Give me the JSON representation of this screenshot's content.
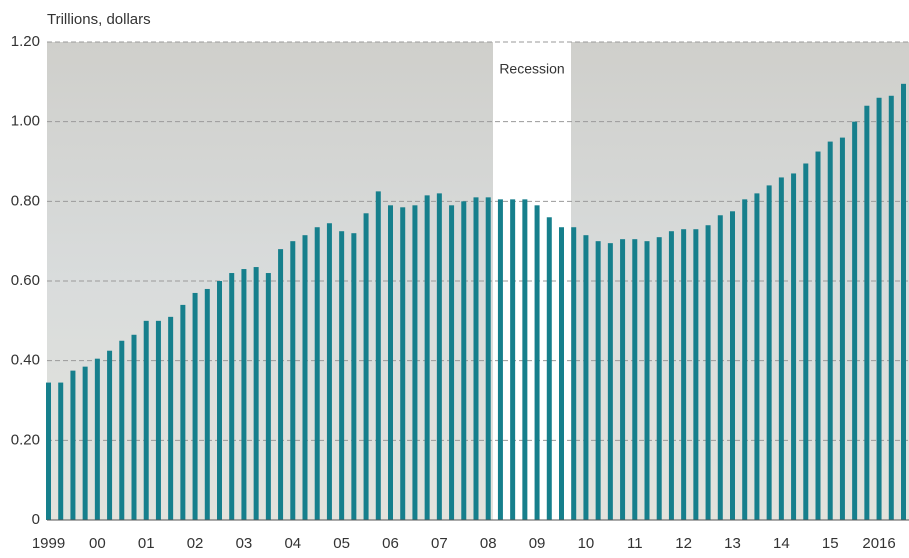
{
  "chart_data": {
    "type": "bar",
    "y_label": "Trillions, dollars",
    "annotation": "Recession",
    "color": "#167f8c",
    "grid": true,
    "ylim": [
      0,
      1.2
    ],
    "yticks": [
      0,
      {
        "value": 0.2,
        "label": "0.20"
      },
      {
        "value": 0.4,
        "label": "0.40"
      },
      {
        "value": 0.6,
        "label": "0.60"
      },
      {
        "value": 0.8,
        "label": "0.80"
      },
      {
        "value": 1.0,
        "label": "1.00"
      },
      {
        "value": 1.2,
        "label": "1.20"
      }
    ],
    "categories": [
      "1999",
      null,
      null,
      null,
      "00",
      null,
      null,
      null,
      "01",
      null,
      null,
      null,
      "02",
      null,
      null,
      null,
      "03",
      null,
      null,
      null,
      "04",
      null,
      null,
      null,
      "05",
      null,
      null,
      null,
      "06",
      null,
      null,
      null,
      "07",
      null,
      null,
      null,
      "08",
      null,
      null,
      null,
      "09",
      null,
      null,
      null,
      "10",
      null,
      null,
      null,
      "11",
      null,
      null,
      null,
      "12",
      null,
      null,
      null,
      "13",
      null,
      null,
      null,
      "14",
      null,
      null,
      null,
      "15",
      null,
      null,
      null,
      "2016",
      null,
      null
    ],
    "values": [
      0.345,
      0.345,
      0.375,
      0.385,
      0.405,
      0.425,
      0.45,
      0.465,
      0.5,
      0.5,
      0.51,
      0.54,
      0.57,
      0.58,
      0.6,
      0.62,
      0.63,
      0.635,
      0.62,
      0.68,
      0.7,
      0.715,
      0.735,
      0.745,
      0.725,
      0.72,
      0.77,
      0.825,
      0.79,
      0.785,
      0.79,
      0.815,
      0.82,
      0.79,
      0.8,
      0.81,
      0.81,
      0.805,
      0.805,
      0.805,
      0.79,
      0.76,
      0.735,
      0.735,
      0.715,
      0.7,
      0.695,
      0.705,
      0.705,
      0.7,
      0.71,
      0.725,
      0.73,
      0.73,
      0.74,
      0.765,
      0.775,
      0.805,
      0.82,
      0.84,
      0.86,
      0.87,
      0.895,
      0.925,
      0.95,
      0.96,
      1.0,
      1.04,
      1.06,
      1.065,
      1.095
    ]
  }
}
